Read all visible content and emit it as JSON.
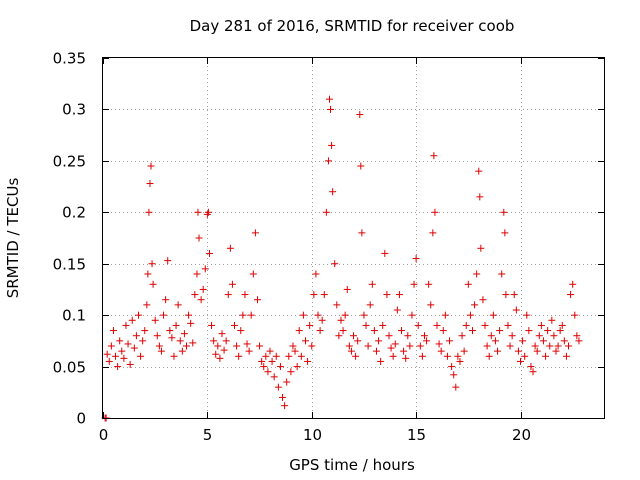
{
  "chart_data": {
    "type": "scatter",
    "title": "Day 281 of 2016, SRMTID for receiver coob",
    "xlabel": "GPS time / hours",
    "ylabel": "SRMTID / TECUs",
    "xlim": [
      0,
      24
    ],
    "ylim": [
      0,
      0.35
    ],
    "x_ticks": [
      "0",
      "5",
      "10",
      "15",
      "20"
    ],
    "y_ticks": [
      "0",
      "0.05",
      "0.1",
      "0.15",
      "0.2",
      "0.25",
      "0.3",
      "0.35"
    ],
    "grid": true,
    "marker": "+",
    "color": "#e00000",
    "series": [
      {
        "name": "SRMTID",
        "points": [
          [
            0.1,
            0.0
          ],
          [
            0.15,
            0.0
          ],
          [
            0.2,
            0.062
          ],
          [
            0.3,
            0.055
          ],
          [
            0.4,
            0.07
          ],
          [
            0.5,
            0.085
          ],
          [
            0.6,
            0.06
          ],
          [
            0.7,
            0.05
          ],
          [
            0.8,
            0.075
          ],
          [
            0.9,
            0.065
          ],
          [
            1.0,
            0.058
          ],
          [
            1.1,
            0.09
          ],
          [
            1.2,
            0.072
          ],
          [
            1.3,
            0.052
          ],
          [
            1.4,
            0.095
          ],
          [
            1.5,
            0.068
          ],
          [
            1.6,
            0.08
          ],
          [
            1.7,
            0.1
          ],
          [
            1.8,
            0.06
          ],
          [
            1.9,
            0.075
          ],
          [
            2.0,
            0.085
          ],
          [
            2.1,
            0.11
          ],
          [
            2.15,
            0.14
          ],
          [
            2.2,
            0.2
          ],
          [
            2.25,
            0.228
          ],
          [
            2.3,
            0.245
          ],
          [
            2.35,
            0.15
          ],
          [
            2.4,
            0.13
          ],
          [
            2.5,
            0.095
          ],
          [
            2.6,
            0.08
          ],
          [
            2.7,
            0.07
          ],
          [
            2.8,
            0.065
          ],
          [
            2.9,
            0.1
          ],
          [
            3.0,
            0.115
          ],
          [
            3.1,
            0.153
          ],
          [
            3.2,
            0.085
          ],
          [
            3.3,
            0.078
          ],
          [
            3.4,
            0.06
          ],
          [
            3.5,
            0.09
          ],
          [
            3.6,
            0.11
          ],
          [
            3.7,
            0.075
          ],
          [
            3.8,
            0.065
          ],
          [
            3.9,
            0.082
          ],
          [
            4.0,
            0.07
          ],
          [
            4.1,
            0.1
          ],
          [
            4.2,
            0.092
          ],
          [
            4.3,
            0.073
          ],
          [
            4.4,
            0.12
          ],
          [
            4.5,
            0.14
          ],
          [
            4.55,
            0.2
          ],
          [
            4.6,
            0.175
          ],
          [
            4.7,
            0.115
          ],
          [
            4.8,
            0.125
          ],
          [
            4.9,
            0.145
          ],
          [
            5.0,
            0.198
          ],
          [
            5.05,
            0.2
          ],
          [
            5.1,
            0.16
          ],
          [
            5.2,
            0.09
          ],
          [
            5.3,
            0.075
          ],
          [
            5.4,
            0.062
          ],
          [
            5.5,
            0.07
          ],
          [
            5.6,
            0.058
          ],
          [
            5.7,
            0.082
          ],
          [
            5.8,
            0.066
          ],
          [
            5.9,
            0.075
          ],
          [
            6.0,
            0.12
          ],
          [
            6.1,
            0.165
          ],
          [
            6.2,
            0.13
          ],
          [
            6.3,
            0.09
          ],
          [
            6.4,
            0.07
          ],
          [
            6.5,
            0.06
          ],
          [
            6.6,
            0.085
          ],
          [
            6.7,
            0.1
          ],
          [
            6.8,
            0.12
          ],
          [
            6.9,
            0.072
          ],
          [
            7.0,
            0.065
          ],
          [
            7.1,
            0.1
          ],
          [
            7.2,
            0.14
          ],
          [
            7.3,
            0.18
          ],
          [
            7.4,
            0.115
          ],
          [
            7.5,
            0.07
          ],
          [
            7.6,
            0.055
          ],
          [
            7.7,
            0.05
          ],
          [
            7.8,
            0.06
          ],
          [
            7.9,
            0.045
          ],
          [
            8.0,
            0.065
          ],
          [
            8.1,
            0.055
          ],
          [
            8.2,
            0.04
          ],
          [
            8.3,
            0.06
          ],
          [
            8.4,
            0.03
          ],
          [
            8.5,
            0.05
          ],
          [
            8.6,
            0.02
          ],
          [
            8.7,
            0.012
          ],
          [
            8.8,
            0.035
          ],
          [
            8.9,
            0.06
          ],
          [
            9.0,
            0.045
          ],
          [
            9.1,
            0.07
          ],
          [
            9.2,
            0.065
          ],
          [
            9.3,
            0.05
          ],
          [
            9.4,
            0.085
          ],
          [
            9.5,
            0.06
          ],
          [
            9.6,
            0.1
          ],
          [
            9.7,
            0.075
          ],
          [
            9.8,
            0.055
          ],
          [
            9.9,
            0.09
          ],
          [
            10.0,
            0.07
          ],
          [
            10.1,
            0.12
          ],
          [
            10.2,
            0.14
          ],
          [
            10.3,
            0.1
          ],
          [
            10.4,
            0.085
          ],
          [
            10.5,
            0.095
          ],
          [
            10.6,
            0.12
          ],
          [
            10.7,
            0.2
          ],
          [
            10.8,
            0.25
          ],
          [
            10.85,
            0.31
          ],
          [
            10.9,
            0.3
          ],
          [
            10.95,
            0.265
          ],
          [
            11.0,
            0.22
          ],
          [
            11.1,
            0.15
          ],
          [
            11.2,
            0.11
          ],
          [
            11.3,
            0.08
          ],
          [
            11.4,
            0.095
          ],
          [
            11.5,
            0.085
          ],
          [
            11.6,
            0.1
          ],
          [
            11.7,
            0.125
          ],
          [
            11.8,
            0.07
          ],
          [
            11.9,
            0.065
          ],
          [
            12.0,
            0.08
          ],
          [
            12.1,
            0.06
          ],
          [
            12.2,
            0.075
          ],
          [
            12.3,
            0.295
          ],
          [
            12.35,
            0.245
          ],
          [
            12.4,
            0.18
          ],
          [
            12.5,
            0.1
          ],
          [
            12.6,
            0.09
          ],
          [
            12.7,
            0.07
          ],
          [
            12.8,
            0.11
          ],
          [
            12.9,
            0.13
          ],
          [
            13.0,
            0.085
          ],
          [
            13.1,
            0.065
          ],
          [
            13.2,
            0.075
          ],
          [
            13.3,
            0.055
          ],
          [
            13.4,
            0.09
          ],
          [
            13.5,
            0.16
          ],
          [
            13.6,
            0.12
          ],
          [
            13.7,
            0.08
          ],
          [
            13.8,
            0.068
          ],
          [
            13.9,
            0.06
          ],
          [
            14.0,
            0.072
          ],
          [
            14.1,
            0.105
          ],
          [
            14.2,
            0.12
          ],
          [
            14.3,
            0.085
          ],
          [
            14.4,
            0.065
          ],
          [
            14.5,
            0.058
          ],
          [
            14.6,
            0.08
          ],
          [
            14.7,
            0.07
          ],
          [
            14.8,
            0.1
          ],
          [
            14.9,
            0.13
          ],
          [
            15.0,
            0.155
          ],
          [
            15.1,
            0.09
          ],
          [
            15.2,
            0.07
          ],
          [
            15.3,
            0.06
          ],
          [
            15.4,
            0.08
          ],
          [
            15.5,
            0.075
          ],
          [
            15.6,
            0.13
          ],
          [
            15.7,
            0.11
          ],
          [
            15.8,
            0.18
          ],
          [
            15.85,
            0.255
          ],
          [
            15.9,
            0.2
          ],
          [
            16.0,
            0.09
          ],
          [
            16.1,
            0.072
          ],
          [
            16.2,
            0.065
          ],
          [
            16.3,
            0.085
          ],
          [
            16.4,
            0.1
          ],
          [
            16.5,
            0.06
          ],
          [
            16.6,
            0.075
          ],
          [
            16.7,
            0.05
          ],
          [
            16.8,
            0.042
          ],
          [
            16.9,
            0.03
          ],
          [
            17.0,
            0.06
          ],
          [
            17.1,
            0.055
          ],
          [
            17.2,
            0.08
          ],
          [
            17.3,
            0.065
          ],
          [
            17.4,
            0.09
          ],
          [
            17.5,
            0.13
          ],
          [
            17.6,
            0.1
          ],
          [
            17.7,
            0.085
          ],
          [
            17.8,
            0.11
          ],
          [
            17.9,
            0.14
          ],
          [
            18.0,
            0.24
          ],
          [
            18.05,
            0.215
          ],
          [
            18.1,
            0.165
          ],
          [
            18.2,
            0.115
          ],
          [
            18.3,
            0.09
          ],
          [
            18.4,
            0.07
          ],
          [
            18.5,
            0.06
          ],
          [
            18.6,
            0.08
          ],
          [
            18.7,
            0.1
          ],
          [
            18.8,
            0.075
          ],
          [
            18.9,
            0.065
          ],
          [
            19.0,
            0.085
          ],
          [
            19.1,
            0.14
          ],
          [
            19.2,
            0.2
          ],
          [
            19.25,
            0.18
          ],
          [
            19.3,
            0.12
          ],
          [
            19.4,
            0.09
          ],
          [
            19.5,
            0.07
          ],
          [
            19.6,
            0.08
          ],
          [
            19.7,
            0.12
          ],
          [
            19.8,
            0.105
          ],
          [
            19.9,
            0.065
          ],
          [
            20.0,
            0.055
          ],
          [
            20.1,
            0.075
          ],
          [
            20.2,
            0.06
          ],
          [
            20.3,
            0.1
          ],
          [
            20.4,
            0.085
          ],
          [
            20.5,
            0.05
          ],
          [
            20.6,
            0.045
          ],
          [
            20.7,
            0.07
          ],
          [
            20.8,
            0.065
          ],
          [
            20.9,
            0.08
          ],
          [
            21.0,
            0.09
          ],
          [
            21.1,
            0.075
          ],
          [
            21.2,
            0.06
          ],
          [
            21.3,
            0.085
          ],
          [
            21.4,
            0.07
          ],
          [
            21.5,
            0.095
          ],
          [
            21.6,
            0.08
          ],
          [
            21.7,
            0.065
          ],
          [
            21.8,
            0.07
          ],
          [
            21.9,
            0.085
          ],
          [
            22.0,
            0.09
          ],
          [
            22.1,
            0.075
          ],
          [
            22.2,
            0.06
          ],
          [
            22.3,
            0.07
          ],
          [
            22.4,
            0.12
          ],
          [
            22.5,
            0.13
          ],
          [
            22.6,
            0.1
          ],
          [
            22.7,
            0.08
          ],
          [
            22.8,
            0.075
          ]
        ]
      }
    ]
  }
}
